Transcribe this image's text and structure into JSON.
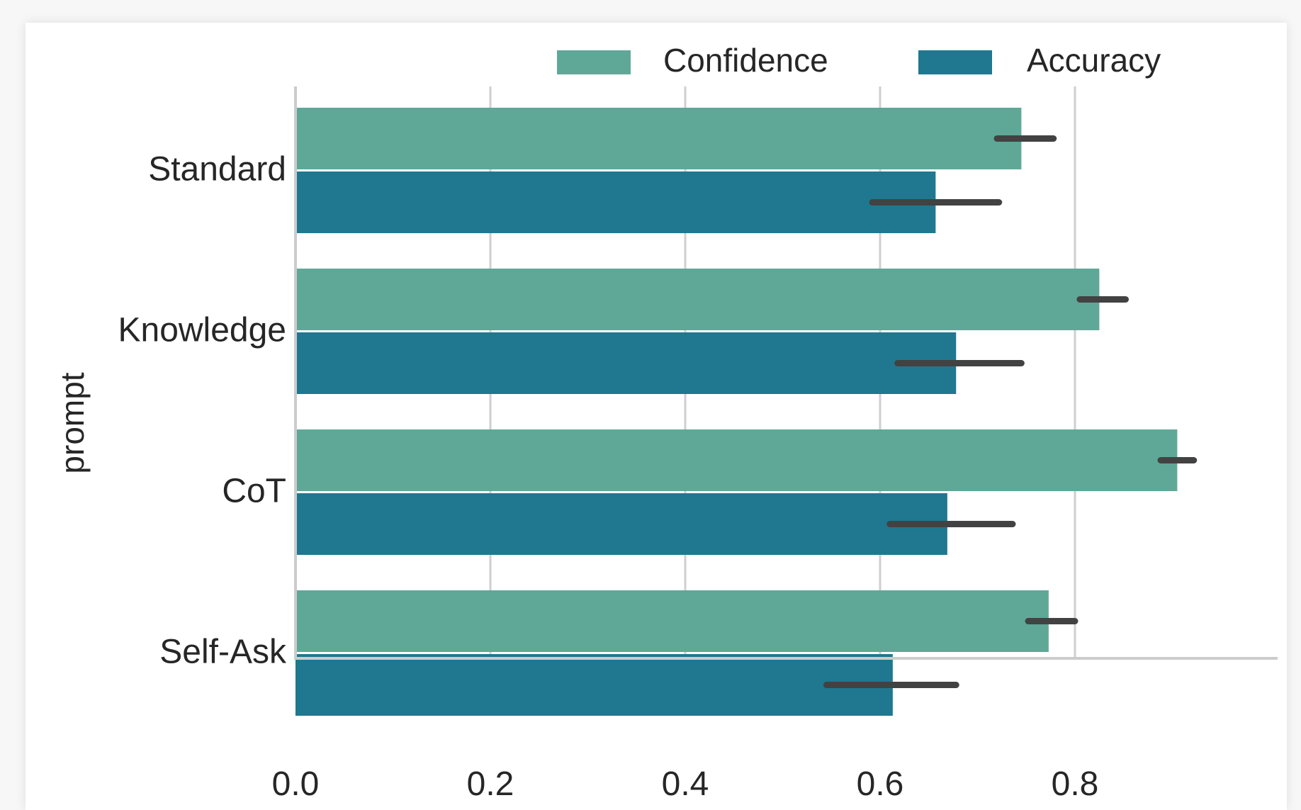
{
  "chart_data": {
    "type": "bar",
    "orientation": "horizontal",
    "categories": [
      "Standard",
      "Knowledge",
      "CoT",
      "Self-Ask"
    ],
    "series": [
      {
        "name": "Confidence",
        "color": "#5fa898",
        "values": [
          0.745,
          0.825,
          0.905,
          0.773
        ],
        "error_low": [
          0.72,
          0.805,
          0.888,
          0.752
        ],
        "error_high": [
          0.778,
          0.852,
          0.922,
          0.8
        ]
      },
      {
        "name": "Accuracy",
        "color": "#1f7890",
        "values": [
          0.657,
          0.678,
          0.669,
          0.613
        ],
        "error_low": [
          0.592,
          0.618,
          0.61,
          0.545
        ],
        "error_high": [
          0.722,
          0.745,
          0.736,
          0.678
        ]
      }
    ],
    "xlabel": "",
    "ylabel": "prompt",
    "xlim": [
      0,
      0.97
    ],
    "xticks": [
      "0.0",
      "0.2",
      "0.4",
      "0.6",
      "0.8"
    ],
    "grid": true,
    "legend": "top-right"
  }
}
